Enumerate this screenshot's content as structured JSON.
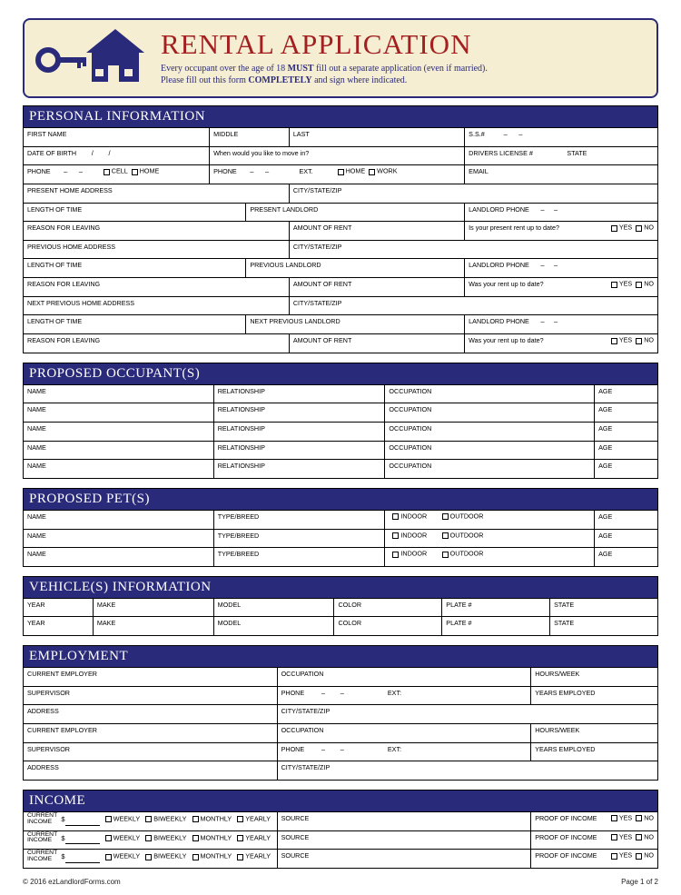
{
  "header": {
    "title": "RENTAL APPLICATION",
    "line1a": "Every occupant over the age of 18 ",
    "line1b": "MUST",
    "line1c": " fill out a separate application (even if married).",
    "line2a": "Please fill out this form ",
    "line2b": "COMPLETELY",
    "line2c": " and sign where indicated."
  },
  "sections": {
    "personal": "PERSONAL INFORMATION",
    "occupants": "PROPOSED OCCUPANT(S)",
    "pets": "PROPOSED PET(S)",
    "vehicles": "VEHICLE(S) INFORMATION",
    "employment": "EMPLOYMENT",
    "income": "INCOME"
  },
  "labels": {
    "first_name": "FIRST NAME",
    "middle": "MIDDLE",
    "last": "LAST",
    "ssn": "S.S.#",
    "dob": "DATE OF BIRTH",
    "move_in": "When would you like to move in?",
    "drivers": "DRIVERS LICENSE #",
    "state": "STATE",
    "phone": "PHONE",
    "cell": "CELL",
    "home": "HOME",
    "ext": "EXT.",
    "work": "WORK",
    "email": "EMAIL",
    "present_addr": "PRESENT HOME ADDRESS",
    "city_state_zip": "CITY/STATE/ZIP",
    "length_time": "LENGTH OF TIME",
    "present_landlord": "PRESENT LANDLORD",
    "landlord_phone": "LANDLORD PHONE",
    "reason_leaving": "REASON FOR LEAVING",
    "amount_rent": "AMOUNT OF RENT",
    "rent_uptodate_present": "Is your present rent up to date?",
    "rent_uptodate_past": "Was your rent up to date?",
    "previous_addr": "PREVIOUS HOME ADDRESS",
    "previous_landlord": "PREVIOUS LANDLORD",
    "next_prev_addr": "NEXT PREVIOUS HOME ADDRESS",
    "next_prev_landlord": "NEXT PREVIOUS LANDLORD",
    "name": "NAME",
    "relationship": "RELATIONSHIP",
    "occupation": "OCCUPATION",
    "age": "AGE",
    "type_breed": "TYPE/BREED",
    "indoor": "INDOOR",
    "outdoor": "OUTDOOR",
    "year": "YEAR",
    "make": "MAKE",
    "model": "MODEL",
    "color": "COLOR",
    "plate": "PLATE #",
    "current_employer": "CURRENT EMPLOYER",
    "hours_week": "HOURS/WEEK",
    "supervisor": "SUPERVISOR",
    "years_employed": "YEARS EMPLOYED",
    "address": "ADDRESS",
    "current_income": "CURRENT\nINCOME",
    "weekly": "WEEKLY",
    "biweekly": "BIWEEKLY",
    "monthly": "MONTHLY",
    "yearly": "YEARLY",
    "source": "SOURCE",
    "proof_income": "PROOF OF INCOME",
    "yes": "YES",
    "no": "NO"
  },
  "footer": {
    "copyright": "© 2016 ezLandlordForms.com",
    "page": "Page 1 of 2"
  },
  "colors": {
    "banner_bg": "#f5eed3",
    "navy": "#2a2a7a",
    "title_red": "#a32020"
  }
}
